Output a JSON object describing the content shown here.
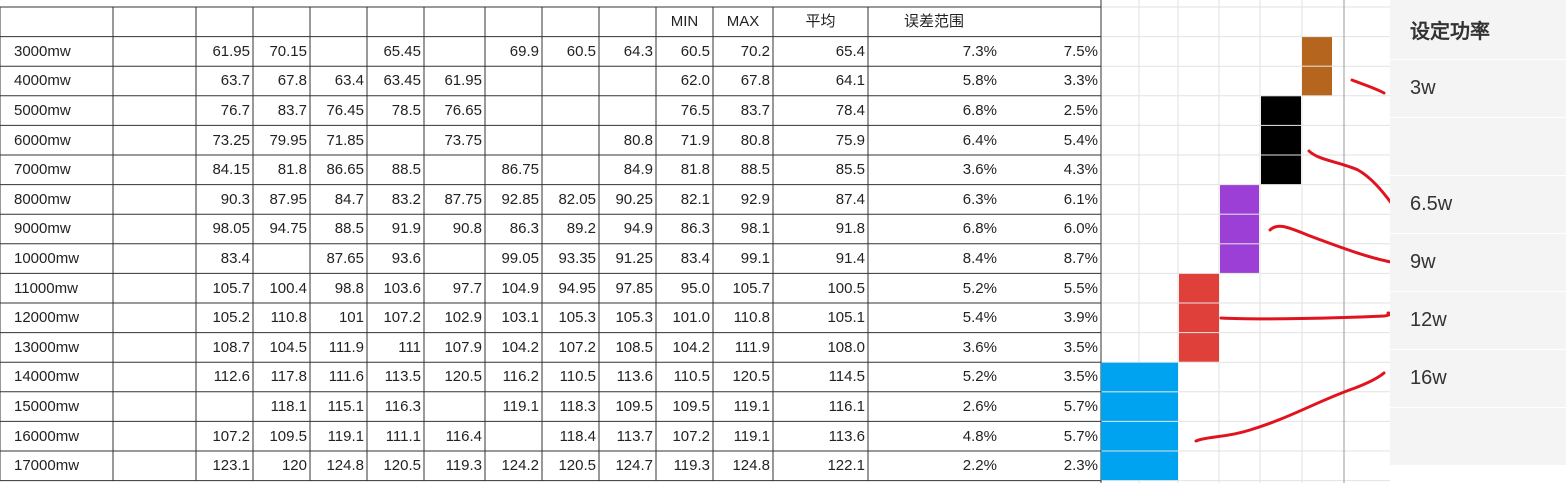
{
  "table": {
    "header": [
      "",
      "",
      "",
      "",
      "",
      "",
      "",
      "",
      "",
      "",
      "MIN",
      "MAX",
      "平均",
      "误差范围",
      ""
    ],
    "rows": [
      [
        "3000mw",
        "",
        "61.95",
        "70.15",
        "",
        "65.45",
        "",
        "69.9",
        "60.5",
        "64.3",
        "60.5",
        "70.2",
        "65.4",
        "7.3%",
        "7.5%"
      ],
      [
        "4000mw",
        "",
        "63.7",
        "67.8",
        "63.4",
        "63.45",
        "61.95",
        "",
        "",
        "",
        "62.0",
        "67.8",
        "64.1",
        "5.8%",
        "3.3%"
      ],
      [
        "5000mw",
        "",
        "76.7",
        "83.7",
        "76.45",
        "78.5",
        "76.65",
        "",
        "",
        "",
        "76.5",
        "83.7",
        "78.4",
        "6.8%",
        "2.5%"
      ],
      [
        "6000mw",
        "",
        "73.25",
        "79.95",
        "71.85",
        "",
        "73.75",
        "",
        "",
        "80.8",
        "71.9",
        "80.8",
        "75.9",
        "6.4%",
        "5.4%"
      ],
      [
        "7000mw",
        "",
        "84.15",
        "81.8",
        "86.65",
        "88.5",
        "",
        "86.75",
        "",
        "84.9",
        "81.8",
        "88.5",
        "85.5",
        "3.6%",
        "4.3%"
      ],
      [
        "8000mw",
        "",
        "90.3",
        "87.95",
        "84.7",
        "83.2",
        "87.75",
        "92.85",
        "82.05",
        "90.25",
        "82.1",
        "92.9",
        "87.4",
        "6.3%",
        "6.1%"
      ],
      [
        "9000mw",
        "",
        "98.05",
        "94.75",
        "88.5",
        "91.9",
        "90.8",
        "86.3",
        "89.2",
        "94.9",
        "86.3",
        "98.1",
        "91.8",
        "6.8%",
        "6.0%"
      ],
      [
        "10000mw",
        "",
        "83.4",
        "",
        "87.65",
        "93.6",
        "",
        "99.05",
        "93.35",
        "91.25",
        "83.4",
        "99.1",
        "91.4",
        "8.4%",
        "8.7%"
      ],
      [
        "11000mw",
        "",
        "105.7",
        "100.4",
        "98.8",
        "103.6",
        "97.7",
        "104.9",
        "94.95",
        "97.85",
        "95.0",
        "105.7",
        "100.5",
        "5.2%",
        "5.5%"
      ],
      [
        "12000mw",
        "",
        "105.2",
        "110.8",
        "101",
        "107.2",
        "102.9",
        "103.1",
        "105.3",
        "105.3",
        "101.0",
        "110.8",
        "105.1",
        "5.4%",
        "3.9%"
      ],
      [
        "13000mw",
        "",
        "108.7",
        "104.5",
        "111.9",
        "111",
        "107.9",
        "104.2",
        "107.2",
        "108.5",
        "104.2",
        "111.9",
        "108.0",
        "3.6%",
        "3.5%"
      ],
      [
        "14000mw",
        "",
        "112.6",
        "117.8",
        "111.6",
        "113.5",
        "120.5",
        "116.2",
        "110.5",
        "113.6",
        "110.5",
        "120.5",
        "114.5",
        "5.2%",
        "3.5%"
      ],
      [
        "15000mw",
        "",
        "",
        "118.1",
        "115.1",
        "116.3",
        "",
        "119.1",
        "118.3",
        "109.5",
        "109.5",
        "119.1",
        "116.1",
        "2.6%",
        "5.7%"
      ],
      [
        "16000mw",
        "",
        "107.2",
        "109.5",
        "119.1",
        "111.1",
        "116.4",
        "",
        "118.4",
        "113.7",
        "107.2",
        "119.1",
        "113.6",
        "4.8%",
        "5.7%"
      ],
      [
        "17000mw",
        "",
        "123.1",
        "120",
        "124.8",
        "120.5",
        "119.3",
        "124.2",
        "120.5",
        "124.7",
        "119.3",
        "124.8",
        "122.1",
        "2.2%",
        "2.3%"
      ]
    ]
  },
  "colors": {
    "orange": "#b5651d",
    "black": "#000000",
    "purple": "#9b3fd6",
    "red": "#e0403a",
    "blue": "#00a3f0",
    "annotation": "#e0141e"
  },
  "power_panel": {
    "title": "设定功率",
    "items": [
      "3w",
      "",
      "6.5w",
      "9w",
      "12w",
      "16w",
      ""
    ]
  }
}
